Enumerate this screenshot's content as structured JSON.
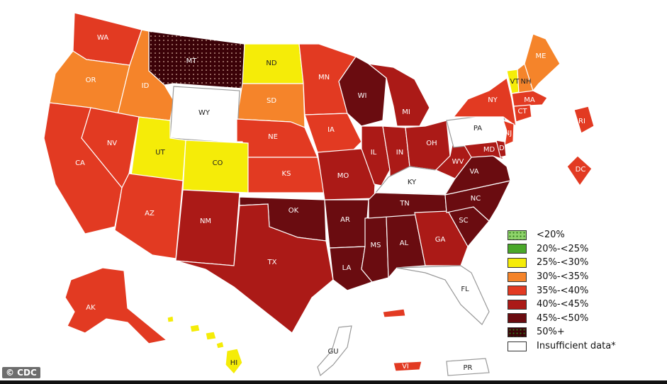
{
  "legend": {
    "items": [
      {
        "label": "<20%",
        "color": "#8fd36b",
        "pattern": "dots"
      },
      {
        "label": "20%-<25%",
        "color": "#4aa82a"
      },
      {
        "label": "25%-<30%",
        "color": "#f5ec08"
      },
      {
        "label": "30%-<35%",
        "color": "#f5842a"
      },
      {
        "label": "35%-<40%",
        "color": "#e23a22"
      },
      {
        "label": "40%-<45%",
        "color": "#ab1a17"
      },
      {
        "label": "45%-<50%",
        "color": "#6a0c10"
      },
      {
        "label": "50%+",
        "color": "#3b0208",
        "pattern": "dots"
      },
      {
        "label": "Insufficient data*",
        "color": "#ffffff"
      }
    ]
  },
  "credit": "© CDC",
  "states": [
    {
      "abbr": "WA",
      "cls": "35-40"
    },
    {
      "abbr": "OR",
      "cls": "30-35"
    },
    {
      "abbr": "ID",
      "cls": "30-35"
    },
    {
      "abbr": "MT",
      "cls": "50+"
    },
    {
      "abbr": "ND",
      "cls": "25-30"
    },
    {
      "abbr": "SD",
      "cls": "30-35"
    },
    {
      "abbr": "WY",
      "cls": "insufficient"
    },
    {
      "abbr": "NE",
      "cls": "35-40"
    },
    {
      "abbr": "MN",
      "cls": "35-40"
    },
    {
      "abbr": "IA",
      "cls": "35-40"
    },
    {
      "abbr": "WI",
      "cls": "45-50"
    },
    {
      "abbr": "MI",
      "cls": "40-45"
    },
    {
      "abbr": "NV",
      "cls": "35-40"
    },
    {
      "abbr": "CA",
      "cls": "35-40"
    },
    {
      "abbr": "UT",
      "cls": "25-30"
    },
    {
      "abbr": "CO",
      "cls": "25-30"
    },
    {
      "abbr": "KS",
      "cls": "35-40"
    },
    {
      "abbr": "MO",
      "cls": "40-45"
    },
    {
      "abbr": "IL",
      "cls": "40-45"
    },
    {
      "abbr": "IN",
      "cls": "40-45"
    },
    {
      "abbr": "OH",
      "cls": "40-45"
    },
    {
      "abbr": "KY",
      "cls": "insufficient"
    },
    {
      "abbr": "AZ",
      "cls": "35-40"
    },
    {
      "abbr": "NM",
      "cls": "40-45"
    },
    {
      "abbr": "OK",
      "cls": "45-50"
    },
    {
      "abbr": "TX",
      "cls": "40-45"
    },
    {
      "abbr": "AR",
      "cls": "45-50"
    },
    {
      "abbr": "LA",
      "cls": "45-50"
    },
    {
      "abbr": "MS",
      "cls": "45-50"
    },
    {
      "abbr": "AL",
      "cls": "45-50"
    },
    {
      "abbr": "TN",
      "cls": "45-50"
    },
    {
      "abbr": "GA",
      "cls": "40-45"
    },
    {
      "abbr": "SC",
      "cls": "45-50"
    },
    {
      "abbr": "NC",
      "cls": "45-50"
    },
    {
      "abbr": "VA",
      "cls": "45-50"
    },
    {
      "abbr": "WV",
      "cls": "40-45"
    },
    {
      "abbr": "FL",
      "cls": "insufficient"
    },
    {
      "abbr": "PA",
      "cls": "insufficient"
    },
    {
      "abbr": "NY",
      "cls": "35-40"
    },
    {
      "abbr": "VT",
      "cls": "25-30"
    },
    {
      "abbr": "NH",
      "cls": "30-35"
    },
    {
      "abbr": "ME",
      "cls": "30-35"
    },
    {
      "abbr": "MA",
      "cls": "35-40"
    },
    {
      "abbr": "CT",
      "cls": "35-40"
    },
    {
      "abbr": "NJ",
      "cls": "35-40"
    },
    {
      "abbr": "MD",
      "cls": "40-45"
    },
    {
      "abbr": "DE",
      "cls": "40-45"
    },
    {
      "abbr": "RI",
      "cls": "35-40"
    },
    {
      "abbr": "DC",
      "cls": "35-40"
    },
    {
      "abbr": "AK",
      "cls": "35-40"
    },
    {
      "abbr": "HI",
      "cls": "25-30"
    },
    {
      "abbr": "GU",
      "cls": "insufficient"
    },
    {
      "abbr": "PR",
      "cls": "insufficient"
    },
    {
      "abbr": "VI",
      "cls": "35-40"
    }
  ]
}
